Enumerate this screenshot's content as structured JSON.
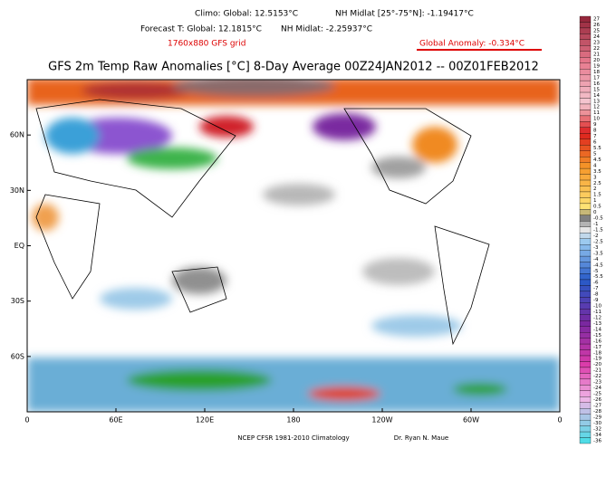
{
  "header": {
    "climo_global": "Climo:   Global: 12.5153°C",
    "climo_nh": "NH Midlat [25°-75°N]: -1.19417°C",
    "fcst_global": "Forecast T:  Global: 12.1815°C",
    "fcst_nh": "NH Midlat: -2.25937°C",
    "grid": "1760x880 GFS grid",
    "anomaly": "Global Anomaly: -0.334°C"
  },
  "title": "GFS 2m Temp Raw Anomalies [°C] 8-Day Average 00Z24JAN2012 -- 00Z01FEB2012",
  "map": {
    "lat_labels": [
      "60N",
      "30N",
      "EQ",
      "30S",
      "60S"
    ],
    "lon_labels": [
      "0",
      "60E",
      "120E",
      "180",
      "120W",
      "60W",
      "0"
    ]
  },
  "footer": {
    "source": "NCEP CFSR 1981-2010 Climatology",
    "author": "Dr. Ryan N. Maue"
  },
  "colorbar": {
    "labels": [
      "27",
      "26",
      "25",
      "24",
      "23",
      "22",
      "21",
      "20",
      "19",
      "18",
      "17",
      "16",
      "15",
      "14",
      "13",
      "12",
      "11",
      "10",
      "9",
      "8",
      "7",
      "6",
      "5.5",
      "5",
      "4.5",
      "4",
      "3.5",
      "3",
      "2.5",
      "2",
      "1.5",
      "1",
      "0.5",
      "0",
      "-0.5",
      "-1",
      "-1.5",
      "-2",
      "-2.5",
      "-3",
      "-3.5",
      "-4",
      "-4.5",
      "-5",
      "-5.5",
      "-6",
      "-7",
      "-8",
      "-9",
      "-10",
      "-11",
      "-12",
      "-13",
      "-14",
      "-15",
      "-16",
      "-17",
      "-18",
      "-19",
      "-20",
      "-21",
      "-22",
      "-23",
      "-24",
      "-25",
      "-26",
      "-27",
      "-28",
      "-29",
      "-30",
      "-32",
      "-34",
      "-36"
    ]
  }
}
